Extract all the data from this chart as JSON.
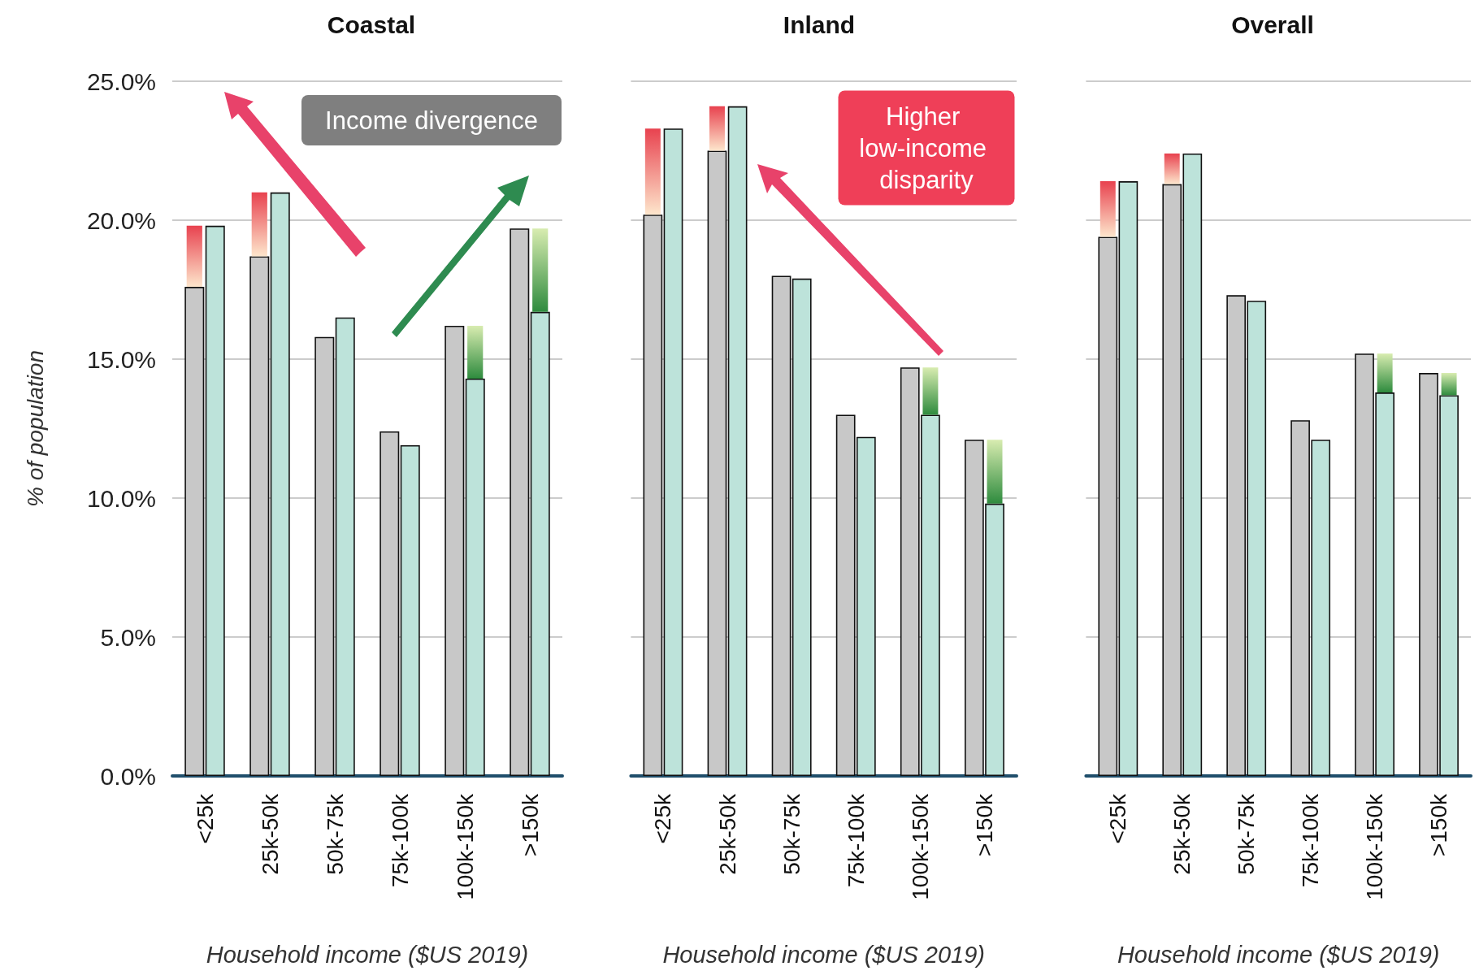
{
  "chart_data": [
    {
      "type": "bar",
      "title": "Coastal",
      "xlabel": "Household income ($US 2019)",
      "ylabel": "% of population",
      "grid": "y",
      "categories": [
        "<25k",
        "25k-50k",
        "50k-75k",
        "75k-100k",
        "100k-150k",
        ">150k"
      ],
      "series": [
        {
          "color": "#c8c8c8",
          "values": [
            17.6,
            18.7,
            15.8,
            12.4,
            16.2,
            19.7
          ]
        },
        {
          "color": "#e8424f",
          "values": [
            2.2,
            2.3,
            null,
            null,
            null,
            null
          ],
          "base": [
            17.6,
            18.7,
            null,
            null,
            null,
            null
          ]
        },
        {
          "color": "#bde3da",
          "values": [
            19.8,
            21.0,
            16.5,
            11.9,
            14.3,
            16.7
          ]
        },
        {
          "color": "#2e8b3e",
          "values": [
            null,
            null,
            null,
            null,
            1.9,
            3.0
          ],
          "base": [
            null,
            null,
            null,
            null,
            14.3,
            16.7
          ]
        }
      ],
      "ylim": [
        0,
        25
      ],
      "yticks": [
        {
          "value": 0,
          "label": "0.0%"
        },
        {
          "value": 5,
          "label": "5.0%"
        },
        {
          "value": 10,
          "label": "10.0%"
        },
        {
          "value": 15,
          "label": "15.0%"
        },
        {
          "value": 20,
          "label": "20.0%"
        },
        {
          "value": 25,
          "label": "25.0%"
        }
      ],
      "annotations": [
        "Income divergence"
      ]
    },
    {
      "type": "bar",
      "title": "Inland",
      "xlabel": "Household income ($US 2019)",
      "grid": "y",
      "tick_labels": "x",
      "categories": [
        "<25k",
        "25k-50k",
        "50k-75k",
        "75k-100k",
        "100k-150k",
        ">150k"
      ],
      "series": [
        {
          "color": "#c8c8c8",
          "values": [
            20.2,
            22.5,
            18.0,
            13.0,
            14.7,
            12.1
          ]
        },
        {
          "color": "#e8424f",
          "values": [
            3.1,
            1.6,
            null,
            null,
            null,
            null
          ],
          "base": [
            20.2,
            22.5,
            null,
            null,
            null,
            null
          ]
        },
        {
          "color": "#bde3da",
          "values": [
            23.3,
            24.1,
            17.9,
            12.2,
            13.0,
            9.8
          ]
        },
        {
          "color": "#2e8b3e",
          "values": [
            null,
            null,
            null,
            null,
            1.7,
            2.3
          ],
          "base": [
            null,
            null,
            null,
            null,
            13.0,
            9.8
          ]
        }
      ],
      "ylim": [
        0,
        25
      ],
      "yticks": [
        0,
        5,
        10,
        15,
        20,
        25
      ],
      "annotations": [
        "Higher low-income disparity"
      ]
    },
    {
      "type": "bar",
      "title": "Overall",
      "xlabel": "Household income ($US 2019)",
      "grid": "y",
      "tick_labels": "x",
      "categories": [
        "<25k",
        "25k-50k",
        "50k-75k",
        "75k-100k",
        "100k-150k",
        ">150k"
      ],
      "series": [
        {
          "color": "#c8c8c8",
          "values": [
            19.4,
            21.3,
            17.3,
            12.8,
            15.2,
            14.5
          ]
        },
        {
          "color": "#e8424f",
          "values": [
            2.0,
            1.1,
            null,
            null,
            null,
            null
          ],
          "base": [
            19.4,
            21.3,
            null,
            null,
            null,
            null
          ]
        },
        {
          "color": "#bde3da",
          "values": [
            21.4,
            22.4,
            17.1,
            12.1,
            13.8,
            13.7
          ]
        },
        {
          "color": "#2e8b3e",
          "values": [
            null,
            null,
            null,
            null,
            1.4,
            0.8
          ],
          "base": [
            null,
            null,
            null,
            null,
            13.8,
            13.7
          ]
        }
      ],
      "ylim": [
        0,
        25
      ],
      "yticks": [
        0,
        5,
        10,
        15,
        20,
        25
      ]
    }
  ]
}
